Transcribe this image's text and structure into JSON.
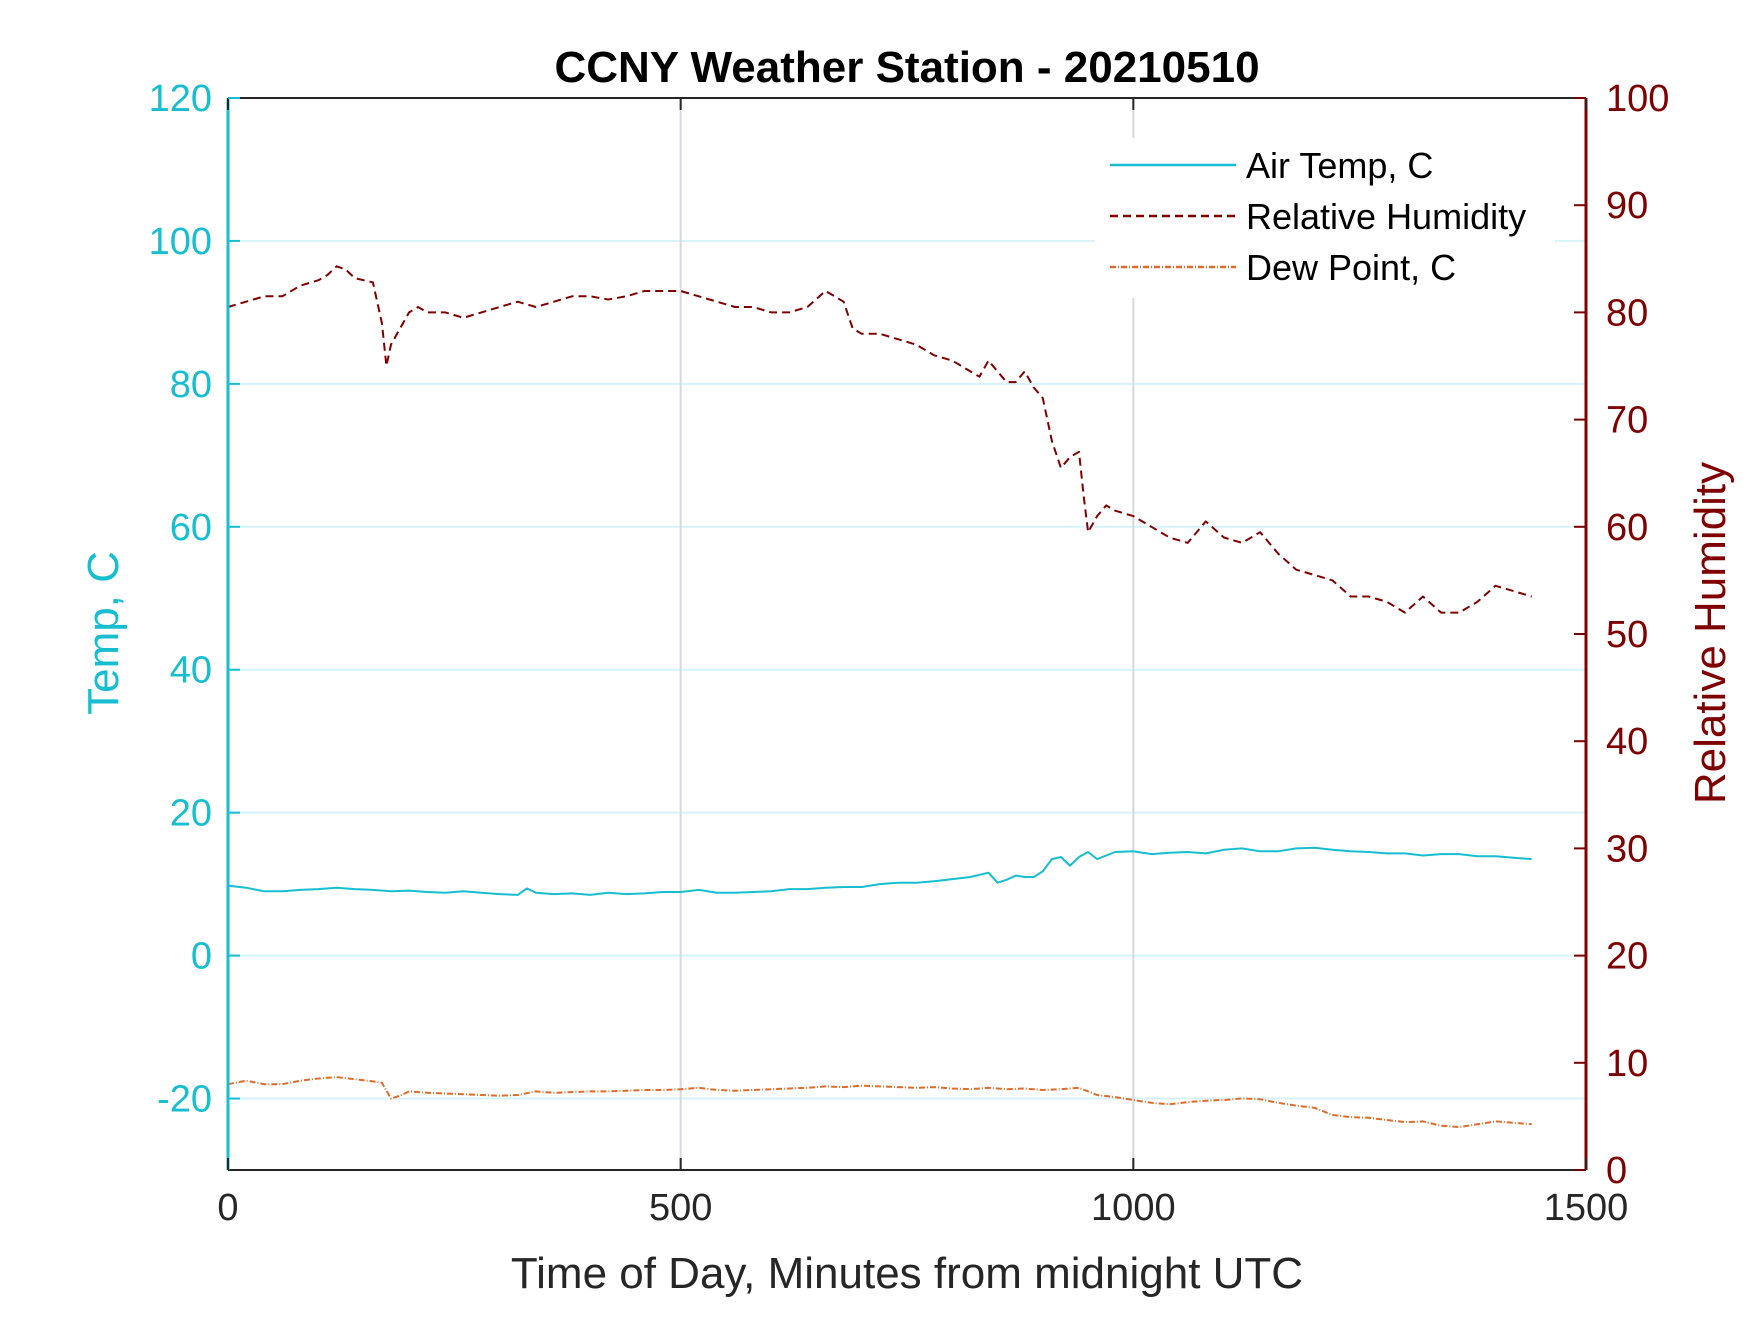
{
  "chart_data": {
    "type": "line",
    "title": "CCNY Weather Station - 20210510",
    "xlabel": "Time of Day, Minutes from midnight UTC",
    "ylabel_left": "Temp, C",
    "ylabel_right": "Relative Humidity",
    "xlim": [
      0,
      1500
    ],
    "ylim_left": [
      -30,
      120
    ],
    "ylim_right": [
      0,
      100
    ],
    "x_ticks": [
      "0",
      "500",
      "1000",
      "1500"
    ],
    "y_ticks_left": [
      "-20",
      "0",
      "20",
      "40",
      "60",
      "80",
      "100",
      "120"
    ],
    "y_ticks_right": [
      "0",
      "10",
      "20",
      "30",
      "40",
      "50",
      "60",
      "70",
      "80",
      "90",
      "100"
    ],
    "grid": "on",
    "legend_position": "top-right",
    "colors": {
      "left_axis": "#17becf",
      "right_axis": "#7f0000",
      "dew": "#e06b2a"
    },
    "series": [
      {
        "name": "Air Temp, C",
        "axis": "left",
        "style": "solid",
        "color": "#17becf",
        "x": [
          0,
          20,
          40,
          60,
          80,
          100,
          120,
          140,
          160,
          180,
          200,
          220,
          240,
          260,
          280,
          300,
          320,
          330,
          340,
          360,
          380,
          400,
          420,
          440,
          460,
          480,
          500,
          520,
          540,
          560,
          580,
          600,
          620,
          640,
          660,
          680,
          700,
          720,
          740,
          760,
          780,
          800,
          820,
          840,
          850,
          860,
          870,
          880,
          890,
          900,
          910,
          920,
          930,
          940,
          950,
          960,
          970,
          980,
          1000,
          1020,
          1040,
          1060,
          1080,
          1100,
          1120,
          1140,
          1160,
          1180,
          1200,
          1220,
          1240,
          1260,
          1280,
          1300,
          1320,
          1340,
          1360,
          1380,
          1400,
          1420,
          1440
        ],
        "values": [
          9.8,
          9.5,
          9.0,
          9.0,
          9.2,
          9.3,
          9.5,
          9.3,
          9.2,
          9.0,
          9.1,
          8.9,
          8.8,
          9.0,
          8.8,
          8.6,
          8.5,
          9.4,
          8.8,
          8.6,
          8.7,
          8.5,
          8.8,
          8.6,
          8.7,
          8.9,
          8.9,
          9.2,
          8.8,
          8.8,
          8.9,
          9.0,
          9.3,
          9.3,
          9.5,
          9.6,
          9.6,
          10.0,
          10.2,
          10.2,
          10.4,
          10.7,
          11.0,
          11.6,
          10.2,
          10.6,
          11.2,
          11.0,
          11.0,
          11.8,
          13.5,
          13.8,
          12.6,
          13.8,
          14.5,
          13.5,
          14.0,
          14.5,
          14.6,
          14.2,
          14.4,
          14.5,
          14.3,
          14.8,
          15.0,
          14.6,
          14.6,
          15.0,
          15.1,
          14.8,
          14.6,
          14.5,
          14.3,
          14.3,
          14.0,
          14.2,
          14.2,
          13.9,
          13.9,
          13.7,
          13.5
        ]
      },
      {
        "name": "Relative Humidity",
        "axis": "right",
        "style": "dashed",
        "color": "#7f0000",
        "x": [
          0,
          20,
          40,
          60,
          80,
          100,
          110,
          120,
          130,
          140,
          160,
          170,
          175,
          180,
          190,
          200,
          210,
          220,
          240,
          260,
          280,
          300,
          320,
          340,
          360,
          380,
          400,
          420,
          440,
          460,
          480,
          500,
          520,
          540,
          560,
          580,
          600,
          620,
          640,
          660,
          670,
          680,
          690,
          700,
          720,
          740,
          760,
          780,
          800,
          820,
          830,
          840,
          850,
          860,
          870,
          880,
          890,
          900,
          910,
          920,
          930,
          940,
          945,
          950,
          960,
          970,
          980,
          1000,
          1020,
          1040,
          1060,
          1080,
          1100,
          1120,
          1140,
          1160,
          1180,
          1200,
          1220,
          1240,
          1260,
          1280,
          1300,
          1320,
          1340,
          1360,
          1380,
          1400,
          1420,
          1440
        ],
        "values": [
          80.5,
          81.0,
          81.5,
          81.5,
          82.5,
          83.0,
          83.5,
          84.3,
          84.0,
          83.2,
          82.8,
          79.0,
          75.0,
          77.0,
          78.5,
          80.0,
          80.5,
          80.0,
          80.0,
          79.5,
          80.0,
          80.5,
          81.0,
          80.5,
          81.0,
          81.5,
          81.5,
          81.2,
          81.5,
          82.0,
          82.0,
          82.0,
          81.5,
          81.0,
          80.5,
          80.5,
          80.0,
          80.0,
          80.5,
          82.0,
          81.5,
          81.0,
          78.5,
          78.0,
          78.0,
          77.5,
          77.0,
          76.0,
          75.5,
          74.5,
          74.0,
          75.5,
          74.5,
          73.5,
          73.5,
          74.5,
          73.0,
          72.0,
          68.0,
          65.5,
          66.5,
          67.0,
          63.0,
          59.5,
          61.0,
          62.0,
          61.5,
          61.0,
          60.0,
          59.0,
          58.5,
          60.5,
          59.0,
          58.5,
          59.5,
          57.5,
          56.0,
          55.5,
          55.0,
          53.5,
          53.5,
          53.0,
          52.0,
          53.5,
          52.0,
          52.0,
          53.0,
          54.5,
          54.0,
          53.5
        ]
      },
      {
        "name": "Dew Point, C",
        "axis": "left",
        "style": "dashdot",
        "color": "#e06b2a",
        "x": [
          0,
          20,
          40,
          60,
          80,
          100,
          120,
          140,
          160,
          170,
          180,
          190,
          200,
          220,
          240,
          260,
          280,
          300,
          320,
          340,
          360,
          380,
          400,
          420,
          440,
          460,
          480,
          500,
          520,
          540,
          560,
          580,
          600,
          620,
          640,
          660,
          680,
          700,
          720,
          740,
          760,
          780,
          800,
          820,
          840,
          860,
          880,
          900,
          920,
          940,
          960,
          980,
          1000,
          1020,
          1040,
          1060,
          1080,
          1100,
          1120,
          1140,
          1160,
          1180,
          1200,
          1220,
          1240,
          1260,
          1280,
          1300,
          1320,
          1340,
          1360,
          1380,
          1400,
          1420,
          1440
        ],
        "values": [
          -18.0,
          -17.5,
          -18.0,
          -18.0,
          -17.5,
          -17.2,
          -17.0,
          -17.3,
          -17.6,
          -17.8,
          -20.0,
          -19.6,
          -19.0,
          -19.2,
          -19.3,
          -19.4,
          -19.5,
          -19.6,
          -19.5,
          -19.0,
          -19.2,
          -19.1,
          -19.0,
          -19.0,
          -18.9,
          -18.8,
          -18.8,
          -18.7,
          -18.5,
          -18.8,
          -18.9,
          -18.8,
          -18.7,
          -18.6,
          -18.5,
          -18.3,
          -18.4,
          -18.2,
          -18.3,
          -18.4,
          -18.5,
          -18.4,
          -18.6,
          -18.7,
          -18.5,
          -18.7,
          -18.6,
          -18.8,
          -18.7,
          -18.5,
          -19.5,
          -19.8,
          -20.2,
          -20.6,
          -20.8,
          -20.5,
          -20.3,
          -20.2,
          -20.0,
          -20.1,
          -20.6,
          -21.0,
          -21.3,
          -22.3,
          -22.6,
          -22.7,
          -23.0,
          -23.3,
          -23.2,
          -23.8,
          -24.0,
          -23.6,
          -23.2,
          -23.4,
          -23.6
        ]
      }
    ]
  }
}
